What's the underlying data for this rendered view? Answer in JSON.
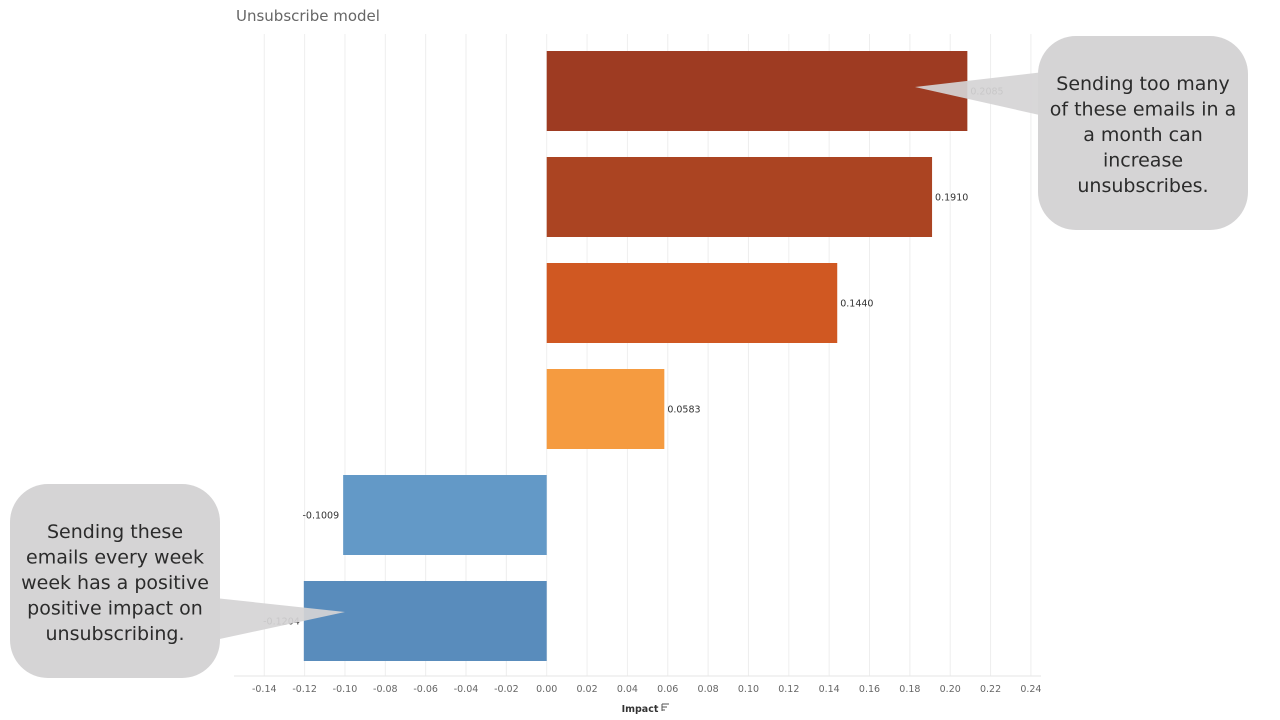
{
  "chart_data": {
    "type": "bar",
    "orientation": "horizontal",
    "title": "Unsubscribe model",
    "xlabel": "Impact",
    "ylabel": "",
    "xlim": [
      -0.155,
      0.245
    ],
    "x_ticks": [
      "-0.14",
      "-0.12",
      "-0.10",
      "-0.08",
      "-0.06",
      "-0.04",
      "-0.02",
      "0.00",
      "0.02",
      "0.04",
      "0.06",
      "0.08",
      "0.10",
      "0.12",
      "0.14",
      "0.16",
      "0.18",
      "0.20",
      "0.22",
      "0.24"
    ],
    "grid": true,
    "bars": [
      {
        "value": 0.2085,
        "label": "0.2085",
        "color": "#9E3B22"
      },
      {
        "value": 0.191,
        "label": "0.1910",
        "color": "#AB4422"
      },
      {
        "value": 0.144,
        "label": "0.1440",
        "color": "#D05822"
      },
      {
        "value": 0.0583,
        "label": "0.0583",
        "color": "#F59B40"
      },
      {
        "value": -0.1009,
        "label": "-0.1009",
        "color": "#6399C7"
      },
      {
        "value": -0.1204,
        "label": "-0.1204",
        "color": "#598CBC"
      }
    ],
    "annotations": [
      {
        "text_lines": [
          "Sending too many",
          "of these emails in a",
          "a month can",
          "increase",
          "unsubscribes."
        ],
        "target": "0.2085"
      },
      {
        "text_lines": [
          "Sending these",
          "emails every week",
          "week has a positive",
          "positive impact on",
          "unsubscribing."
        ],
        "target": "-0.1204"
      }
    ]
  },
  "callout_color": "#D5D4D5"
}
